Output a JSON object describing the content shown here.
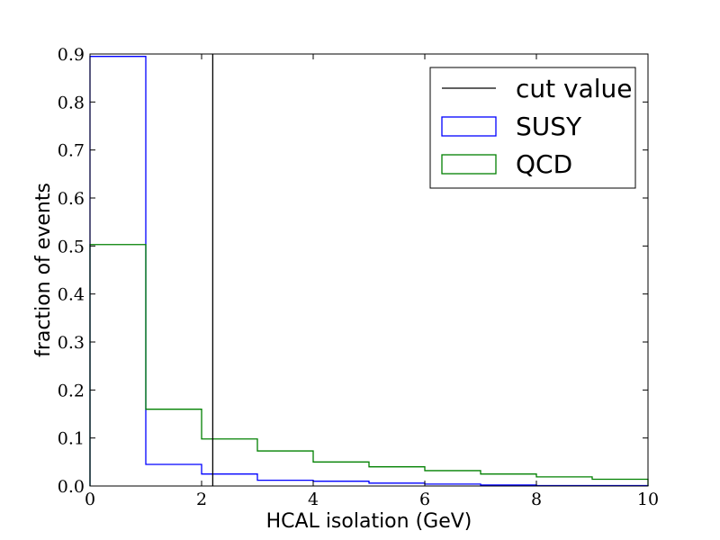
{
  "chart_data": {
    "type": "step-histogram",
    "xlabel": "HCAL isolation (GeV)",
    "ylabel": "fraction of events",
    "xlim": [
      0,
      10
    ],
    "ylim": [
      0,
      0.9
    ],
    "grid": false,
    "x_ticks": [
      0,
      2,
      4,
      6,
      8,
      10
    ],
    "x_tick_labels": [
      "0",
      "2",
      "4",
      "6",
      "8",
      "10"
    ],
    "y_ticks": [
      0,
      0.1,
      0.2,
      0.3,
      0.4,
      0.5,
      0.6,
      0.7,
      0.8,
      0.9
    ],
    "y_tick_labels": [
      "0.0",
      "0.1",
      "0.2",
      "0.3",
      "0.4",
      "0.5",
      "0.6",
      "0.7",
      "0.8",
      "0.9"
    ],
    "bin_edges": [
      0,
      1,
      2,
      3,
      4,
      5,
      6,
      7,
      8,
      9,
      10
    ],
    "series": [
      {
        "name": "SUSY",
        "color": "#0000ff",
        "values": [
          0.895,
          0.045,
          0.025,
          0.012,
          0.01,
          0.006,
          0.004,
          0.002,
          0.001,
          0.001
        ]
      },
      {
        "name": "QCD",
        "color": "#008000",
        "values": [
          0.503,
          0.16,
          0.098,
          0.073,
          0.05,
          0.04,
          0.032,
          0.025,
          0.019,
          0.014
        ]
      }
    ],
    "cut_value": {
      "name": "cut value",
      "x": 2.2,
      "color": "#000000"
    },
    "legend": {
      "position": "top-right",
      "entries": [
        {
          "label": "cut value",
          "style": "line",
          "color": "#000000"
        },
        {
          "label": "SUSY",
          "style": "box",
          "color": "#0000ff"
        },
        {
          "label": "QCD",
          "style": "box",
          "color": "#008000"
        }
      ]
    }
  }
}
